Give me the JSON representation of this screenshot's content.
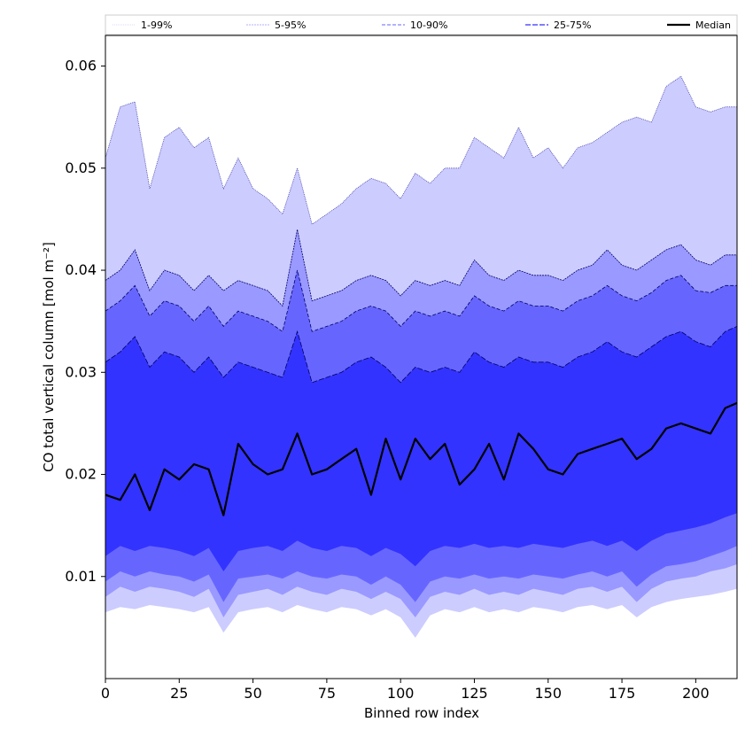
{
  "chart_data": {
    "type": "area",
    "title": "",
    "xlabel": "Binned row index",
    "ylabel": "CO total vertical column [mol m⁻²]",
    "xlim": [
      0,
      214
    ],
    "ylim": [
      0.0,
      0.063
    ],
    "xticks": [
      0,
      25,
      50,
      75,
      100,
      125,
      150,
      175,
      200
    ],
    "yticks": [
      0.01,
      0.02,
      0.03,
      0.04,
      0.05,
      0.06
    ],
    "legend_position": "top",
    "legend": [
      "1-99%",
      "5-95%",
      "10-90%",
      "25-75%",
      "Median"
    ],
    "x": [
      0,
      5,
      10,
      15,
      20,
      25,
      30,
      35,
      40,
      45,
      50,
      55,
      60,
      65,
      70,
      75,
      80,
      85,
      90,
      95,
      100,
      105,
      110,
      115,
      120,
      125,
      130,
      135,
      140,
      145,
      150,
      155,
      160,
      165,
      170,
      175,
      180,
      185,
      190,
      195,
      200,
      205,
      210,
      214
    ],
    "bands": [
      {
        "name": "1-99%",
        "color": "#ccccff",
        "low": [
          0.0065,
          0.007,
          0.0068,
          0.0072,
          0.007,
          0.0068,
          0.0065,
          0.007,
          0.0045,
          0.0065,
          0.0068,
          0.007,
          0.0065,
          0.0072,
          0.0068,
          0.0065,
          0.007,
          0.0068,
          0.0062,
          0.0068,
          0.006,
          0.004,
          0.0062,
          0.0068,
          0.0065,
          0.007,
          0.0065,
          0.0068,
          0.0065,
          0.007,
          0.0068,
          0.0065,
          0.007,
          0.0072,
          0.0068,
          0.0072,
          0.006,
          0.007,
          0.0075,
          0.0078,
          0.008,
          0.0082,
          0.0085,
          0.0088
        ],
        "high": [
          0.051,
          0.056,
          0.0565,
          0.048,
          0.053,
          0.054,
          0.052,
          0.053,
          0.048,
          0.051,
          0.048,
          0.047,
          0.0455,
          0.05,
          0.0445,
          0.0455,
          0.0465,
          0.048,
          0.049,
          0.0485,
          0.047,
          0.0495,
          0.0485,
          0.05,
          0.05,
          0.053,
          0.052,
          0.051,
          0.054,
          0.051,
          0.052,
          0.05,
          0.052,
          0.0525,
          0.0535,
          0.0545,
          0.055,
          0.0545,
          0.058,
          0.059,
          0.056,
          0.0555,
          0.056,
          0.056
        ]
      },
      {
        "name": "5-95%",
        "color": "#9999ff",
        "low": [
          0.008,
          0.009,
          0.0085,
          0.009,
          0.0088,
          0.0085,
          0.008,
          0.0088,
          0.006,
          0.0082,
          0.0085,
          0.0088,
          0.0082,
          0.009,
          0.0085,
          0.0082,
          0.0088,
          0.0085,
          0.0078,
          0.0085,
          0.0078,
          0.006,
          0.008,
          0.0085,
          0.0082,
          0.0088,
          0.0082,
          0.0085,
          0.0082,
          0.0088,
          0.0085,
          0.0082,
          0.0088,
          0.009,
          0.0085,
          0.009,
          0.0075,
          0.0088,
          0.0095,
          0.0098,
          0.01,
          0.0105,
          0.0108,
          0.0112
        ],
        "high": [
          0.039,
          0.04,
          0.042,
          0.038,
          0.04,
          0.0395,
          0.038,
          0.0395,
          0.038,
          0.039,
          0.0385,
          0.038,
          0.0365,
          0.044,
          0.037,
          0.0375,
          0.038,
          0.039,
          0.0395,
          0.039,
          0.0375,
          0.039,
          0.0385,
          0.039,
          0.0385,
          0.041,
          0.0395,
          0.039,
          0.04,
          0.0395,
          0.0395,
          0.039,
          0.04,
          0.0405,
          0.042,
          0.0405,
          0.04,
          0.041,
          0.042,
          0.0425,
          0.041,
          0.0405,
          0.0415,
          0.0415
        ]
      },
      {
        "name": "10-90%",
        "color": "#6666ff",
        "low": [
          0.0095,
          0.0105,
          0.01,
          0.0105,
          0.0102,
          0.01,
          0.0095,
          0.0102,
          0.0075,
          0.0098,
          0.01,
          0.0102,
          0.0098,
          0.0105,
          0.01,
          0.0098,
          0.0102,
          0.01,
          0.0092,
          0.01,
          0.0092,
          0.0075,
          0.0095,
          0.01,
          0.0098,
          0.0102,
          0.0098,
          0.01,
          0.0098,
          0.0102,
          0.01,
          0.0098,
          0.0102,
          0.0105,
          0.01,
          0.0105,
          0.009,
          0.0102,
          0.011,
          0.0112,
          0.0115,
          0.012,
          0.0125,
          0.013
        ],
        "high": [
          0.036,
          0.037,
          0.0385,
          0.0355,
          0.037,
          0.0365,
          0.035,
          0.0365,
          0.0345,
          0.036,
          0.0355,
          0.035,
          0.034,
          0.04,
          0.034,
          0.0345,
          0.035,
          0.036,
          0.0365,
          0.036,
          0.0345,
          0.036,
          0.0355,
          0.036,
          0.0355,
          0.0375,
          0.0365,
          0.036,
          0.037,
          0.0365,
          0.0365,
          0.036,
          0.037,
          0.0375,
          0.0385,
          0.0375,
          0.037,
          0.0378,
          0.039,
          0.0395,
          0.038,
          0.0378,
          0.0385,
          0.0385
        ]
      },
      {
        "name": "25-75%",
        "color": "#3333ff",
        "low": [
          0.012,
          0.013,
          0.0125,
          0.013,
          0.0128,
          0.0125,
          0.012,
          0.0128,
          0.0105,
          0.0125,
          0.0128,
          0.013,
          0.0125,
          0.0135,
          0.0128,
          0.0125,
          0.013,
          0.0128,
          0.012,
          0.0128,
          0.0122,
          0.011,
          0.0125,
          0.013,
          0.0128,
          0.0132,
          0.0128,
          0.013,
          0.0128,
          0.0132,
          0.013,
          0.0128,
          0.0132,
          0.0135,
          0.013,
          0.0135,
          0.0125,
          0.0135,
          0.0142,
          0.0145,
          0.0148,
          0.0152,
          0.0158,
          0.0162
        ],
        "high": [
          0.031,
          0.032,
          0.0335,
          0.0305,
          0.032,
          0.0315,
          0.03,
          0.0315,
          0.0295,
          0.031,
          0.0305,
          0.03,
          0.0295,
          0.034,
          0.029,
          0.0295,
          0.03,
          0.031,
          0.0315,
          0.0305,
          0.029,
          0.0305,
          0.03,
          0.0305,
          0.03,
          0.032,
          0.031,
          0.0305,
          0.0315,
          0.031,
          0.031,
          0.0305,
          0.0315,
          0.032,
          0.033,
          0.032,
          0.0315,
          0.0325,
          0.0335,
          0.034,
          0.033,
          0.0325,
          0.034,
          0.0345
        ]
      }
    ],
    "median": [
      0.018,
      0.0175,
      0.02,
      0.0165,
      0.0205,
      0.0195,
      0.021,
      0.0205,
      0.016,
      0.023,
      0.021,
      0.02,
      0.0205,
      0.024,
      0.02,
      0.0205,
      0.0215,
      0.0225,
      0.018,
      0.0235,
      0.0195,
      0.0235,
      0.0215,
      0.023,
      0.019,
      0.0205,
      0.023,
      0.0195,
      0.024,
      0.0225,
      0.0205,
      0.02,
      0.022,
      0.0225,
      0.023,
      0.0235,
      0.0215,
      0.0225,
      0.0245,
      0.025,
      0.0245,
      0.024,
      0.0265,
      0.027
    ]
  }
}
